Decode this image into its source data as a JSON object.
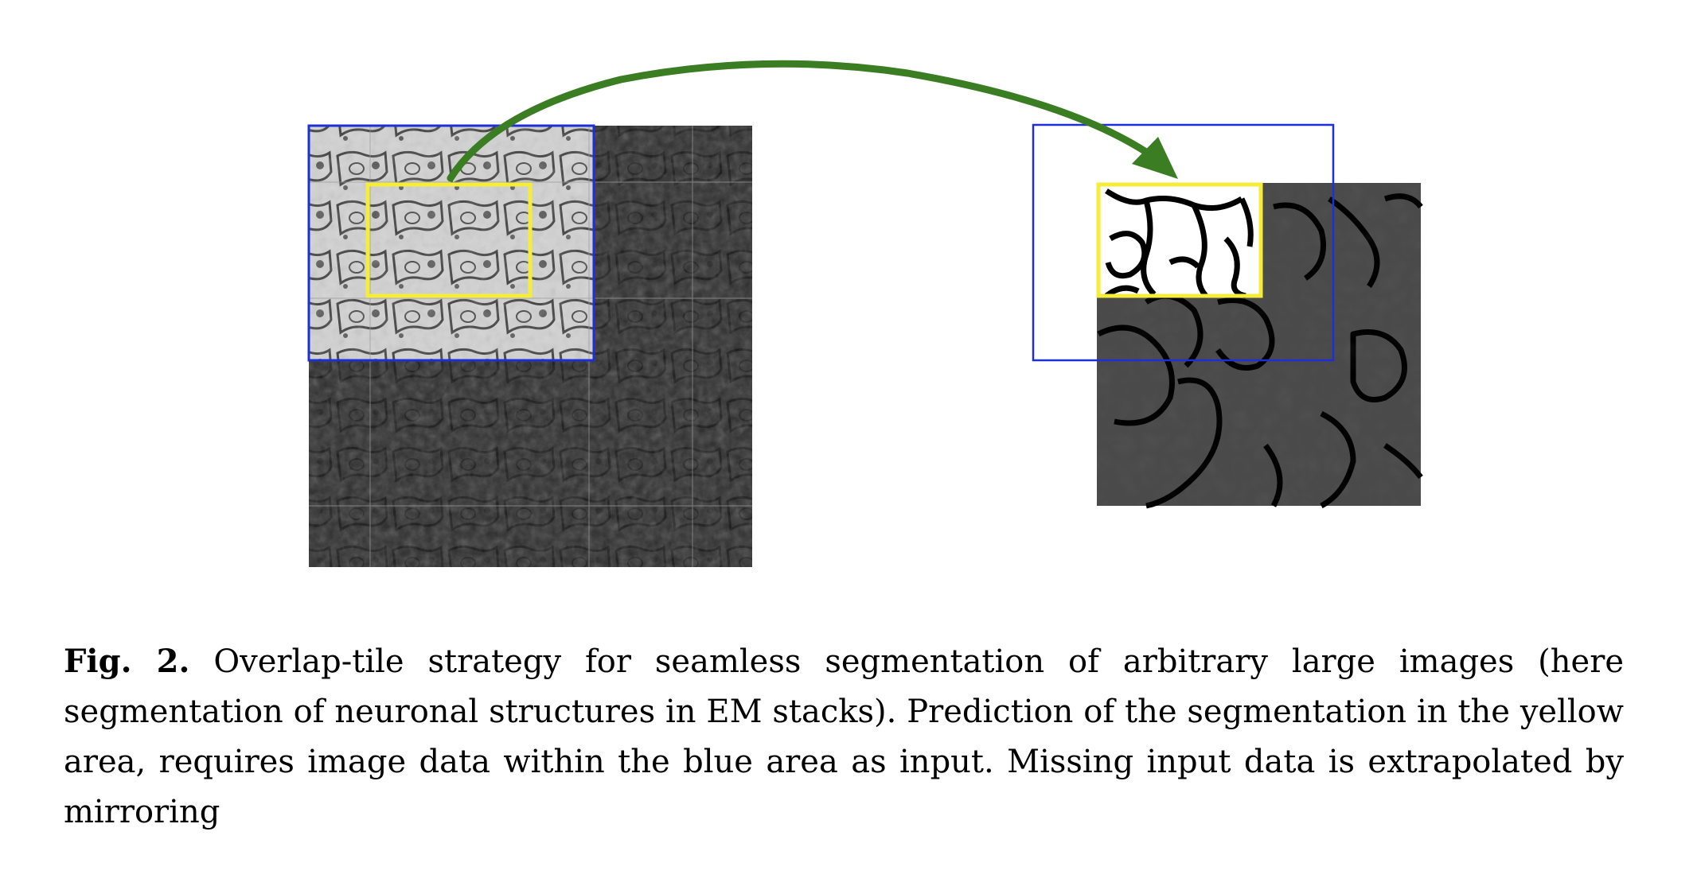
{
  "figure": {
    "label": "Fig. 2.",
    "caption": "Overlap-tile strategy for seamless segmentation of arbitrary large images (here segmentation of neuronal structures in EM stacks). Prediction of the segmentation in the yellow area, requires image data within the blue area as input. Missing input data is extrapolated by mirroring"
  },
  "colors": {
    "input_region": "#1f2fd6",
    "output_region": "#f4ee3a",
    "arrow": "#3a7d22",
    "em_light": "#d6d6d6",
    "em_dark": "#2b2b2b",
    "segmentation_background": "#4a4a4a",
    "segmentation_membrane": "#000000",
    "segmentation_cell": "#ffffff"
  },
  "panels": {
    "left": "em-image-with-mirrored-extrapolation",
    "right": "segmentation-map"
  }
}
